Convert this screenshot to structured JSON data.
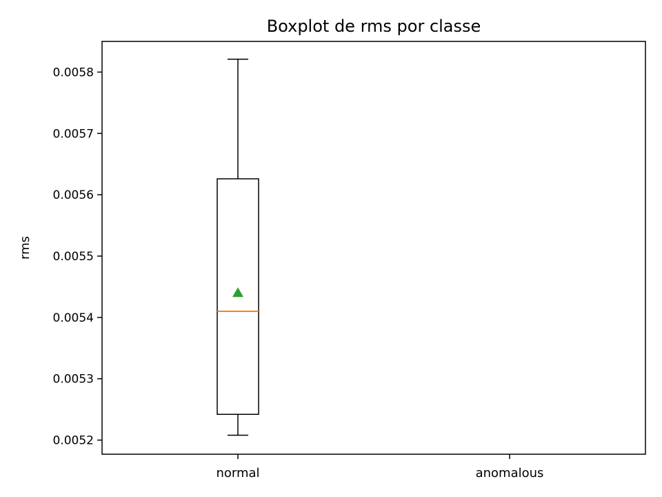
{
  "chart_data": {
    "type": "box",
    "title": "Boxplot de rms por classe",
    "xlabel": "",
    "ylabel": "rms",
    "categories": [
      "normal",
      "anomalous"
    ],
    "ylim": [
      0.005177,
      0.00585
    ],
    "yticks": [
      0.0052,
      0.0053,
      0.0054,
      0.0055,
      0.0056,
      0.0057,
      0.0058
    ],
    "ytick_labels": [
      "0.0052",
      "0.0053",
      "0.0054",
      "0.0055",
      "0.0056",
      "0.0057",
      "0.0058"
    ],
    "boxes": [
      {
        "category": "normal",
        "whisker_low": 0.005208,
        "q1": 0.005242,
        "median": 0.00541,
        "q3": 0.005626,
        "whisker_high": 0.005821,
        "mean": 0.00544
      }
    ],
    "grid": false,
    "colors": {
      "box": "#000000",
      "median": "#ff7f0e",
      "mean_marker": "#2ca02c"
    }
  }
}
